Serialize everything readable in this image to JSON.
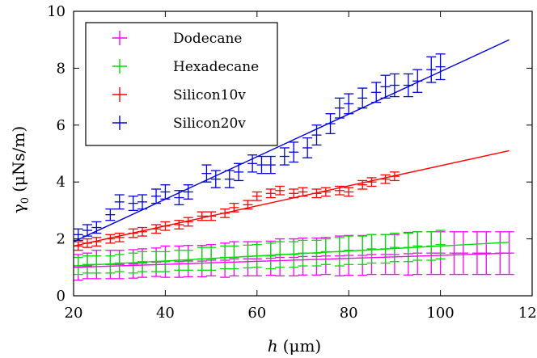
{
  "chart_data": {
    "type": "scatter",
    "title": "",
    "xlabel_main": "h",
    "xlabel_unit": "(μm)",
    "ylabel_main": "γ",
    "ylabel_sub": "0",
    "ylabel_unit": "(μNs/m)",
    "xlim": [
      20,
      120
    ],
    "ylim": [
      0,
      10
    ],
    "xticks": [
      20,
      40,
      60,
      80,
      100,
      120
    ],
    "yticks": [
      0,
      2,
      4,
      6,
      8,
      10
    ],
    "legend_position": "top-left",
    "series": [
      {
        "name": "Dodecane",
        "color": "#ff00ff",
        "x": [
          21,
          23,
          25,
          28,
          30,
          33,
          35,
          38,
          40,
          43,
          45,
          48,
          50,
          53,
          55,
          58,
          60,
          63,
          65,
          68,
          70,
          73,
          75,
          78,
          80,
          83,
          85,
          88,
          90,
          93,
          95,
          98,
          100,
          103,
          105,
          108,
          110,
          113,
          115
        ],
        "y": [
          1.0,
          1.05,
          1.1,
          1.1,
          1.1,
          1.12,
          1.15,
          1.18,
          1.2,
          1.2,
          1.22,
          1.22,
          1.25,
          1.25,
          1.3,
          1.3,
          1.3,
          1.32,
          1.35,
          1.35,
          1.38,
          1.38,
          1.4,
          1.4,
          1.42,
          1.42,
          1.45,
          1.45,
          1.45,
          1.48,
          1.5,
          1.5,
          1.5,
          1.5,
          1.5,
          1.5,
          1.5,
          1.5,
          1.5
        ],
        "err": [
          0.45,
          0.45,
          0.5,
          0.5,
          0.5,
          0.5,
          0.5,
          0.5,
          0.55,
          0.55,
          0.55,
          0.55,
          0.55,
          0.6,
          0.6,
          0.6,
          0.6,
          0.6,
          0.65,
          0.65,
          0.65,
          0.65,
          0.65,
          0.7,
          0.7,
          0.7,
          0.7,
          0.7,
          0.7,
          0.75,
          0.75,
          0.75,
          0.75,
          0.75,
          0.75,
          0.75,
          0.75,
          0.75,
          0.75
        ],
        "fit": [
          [
            20,
            1.0
          ],
          [
            115,
            1.5
          ]
        ]
      },
      {
        "name": "Hexadecane",
        "color": "#00dd00",
        "x": [
          21,
          23,
          25,
          28,
          30,
          33,
          35,
          38,
          40,
          43,
          45,
          48,
          50,
          53,
          55,
          58,
          60,
          63,
          65,
          68,
          70,
          73,
          75,
          78,
          80,
          83,
          85,
          88,
          90,
          93,
          95,
          98,
          100
        ],
        "y": [
          1.05,
          1.1,
          1.1,
          1.1,
          1.15,
          1.15,
          1.2,
          1.2,
          1.2,
          1.25,
          1.25,
          1.3,
          1.3,
          1.35,
          1.35,
          1.38,
          1.4,
          1.4,
          1.45,
          1.45,
          1.5,
          1.5,
          1.55,
          1.55,
          1.6,
          1.6,
          1.65,
          1.65,
          1.7,
          1.7,
          1.75,
          1.75,
          1.8
        ],
        "err": [
          0.3,
          0.3,
          0.3,
          0.3,
          0.3,
          0.35,
          0.35,
          0.35,
          0.35,
          0.35,
          0.35,
          0.4,
          0.4,
          0.4,
          0.4,
          0.4,
          0.4,
          0.45,
          0.45,
          0.45,
          0.45,
          0.45,
          0.45,
          0.5,
          0.5,
          0.5,
          0.5,
          0.5,
          0.5,
          0.5,
          0.5,
          0.5,
          0.5
        ],
        "fit": [
          [
            20,
            1.05
          ],
          [
            115,
            1.88
          ]
        ]
      },
      {
        "name": "Silicon10v",
        "color": "#ff0000",
        "x": [
          21,
          23,
          25,
          28,
          30,
          33,
          35,
          38,
          40,
          43,
          45,
          48,
          50,
          53,
          55,
          58,
          60,
          63,
          65,
          68,
          70,
          73,
          75,
          78,
          80,
          83,
          85,
          88,
          90
        ],
        "y": [
          1.75,
          1.85,
          1.9,
          2.0,
          2.05,
          2.2,
          2.25,
          2.35,
          2.45,
          2.5,
          2.6,
          2.8,
          2.8,
          2.9,
          3.1,
          3.2,
          3.5,
          3.6,
          3.7,
          3.6,
          3.65,
          3.6,
          3.65,
          3.7,
          3.65,
          3.9,
          4.0,
          4.1,
          4.2
        ],
        "err": [
          0.15,
          0.15,
          0.15,
          0.15,
          0.15,
          0.15,
          0.15,
          0.15,
          0.15,
          0.15,
          0.15,
          0.15,
          0.15,
          0.15,
          0.15,
          0.15,
          0.15,
          0.15,
          0.15,
          0.15,
          0.15,
          0.15,
          0.15,
          0.15,
          0.15,
          0.15,
          0.15,
          0.15,
          0.15
        ],
        "fit": [
          [
            20,
            1.75
          ],
          [
            115,
            5.1
          ]
        ]
      },
      {
        "name": "Silicon20v",
        "color": "#0000dd",
        "x": [
          21,
          23,
          25,
          28,
          30,
          33,
          35,
          38,
          40,
          43,
          45,
          49,
          51,
          54,
          56,
          59,
          61,
          63,
          66,
          68,
          71,
          73,
          76,
          78,
          80,
          83,
          86,
          88,
          90,
          93,
          95,
          98,
          100
        ],
        "y": [
          2.15,
          2.3,
          2.4,
          2.85,
          3.3,
          3.25,
          3.3,
          3.5,
          3.65,
          3.45,
          3.65,
          4.3,
          4.1,
          4.1,
          4.35,
          4.65,
          4.6,
          4.6,
          4.9,
          5.05,
          5.2,
          5.65,
          6.05,
          6.6,
          6.75,
          6.95,
          7.15,
          7.35,
          7.4,
          7.4,
          7.55,
          7.95,
          8.05
        ],
        "err": [
          0.2,
          0.2,
          0.2,
          0.2,
          0.25,
          0.25,
          0.25,
          0.25,
          0.25,
          0.25,
          0.25,
          0.3,
          0.3,
          0.3,
          0.3,
          0.3,
          0.3,
          0.3,
          0.3,
          0.35,
          0.35,
          0.35,
          0.35,
          0.35,
          0.35,
          0.35,
          0.35,
          0.4,
          0.4,
          0.4,
          0.4,
          0.45,
          0.45
        ],
        "fit": [
          [
            20,
            1.9
          ],
          [
            115,
            9.0
          ]
        ]
      }
    ]
  }
}
